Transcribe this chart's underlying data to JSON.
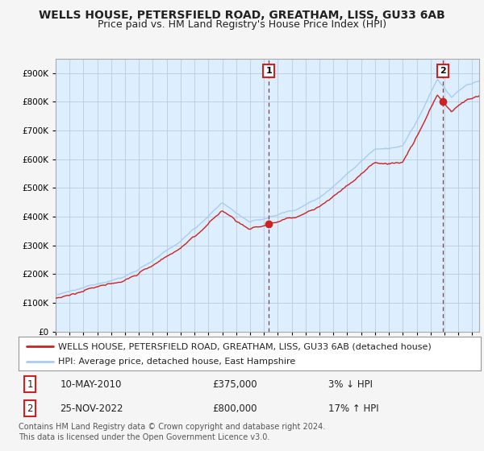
{
  "title": "WELLS HOUSE, PETERSFIELD ROAD, GREATHAM, LISS, GU33 6AB",
  "subtitle": "Price paid vs. HM Land Registry's House Price Index (HPI)",
  "legend_line1": "WELLS HOUSE, PETERSFIELD ROAD, GREATHAM, LISS, GU33 6AB (detached house)",
  "legend_line2": "HPI: Average price, detached house, East Hampshire",
  "annotation1_date": "10-MAY-2010",
  "annotation1_price": "£375,000",
  "annotation1_hpi": "3% ↓ HPI",
  "annotation2_date": "25-NOV-2022",
  "annotation2_price": "£800,000",
  "annotation2_hpi": "17% ↑ HPI",
  "footer": "Contains HM Land Registry data © Crown copyright and database right 2024.\nThis data is licensed under the Open Government Licence v3.0.",
  "hpi_line_color": "#aaccee",
  "price_line_color": "#cc2222",
  "background_color": "#ddeeff",
  "plot_bg_color": "#ffffff",
  "grid_color": "#bbccdd",
  "annotation_vline_color": "#cc2222",
  "annotation_box_color": "#cc2222",
  "ylim": [
    0,
    950000
  ],
  "xlim_start": 1995.0,
  "xlim_end": 2025.5,
  "sale1_year": 2010.36,
  "sale1_value": 375000,
  "sale2_year": 2022.9,
  "sale2_value": 800000,
  "title_fontsize": 10,
  "subtitle_fontsize": 9,
  "tick_fontsize": 7.5,
  "legend_fontsize": 8,
  "footer_fontsize": 7
}
